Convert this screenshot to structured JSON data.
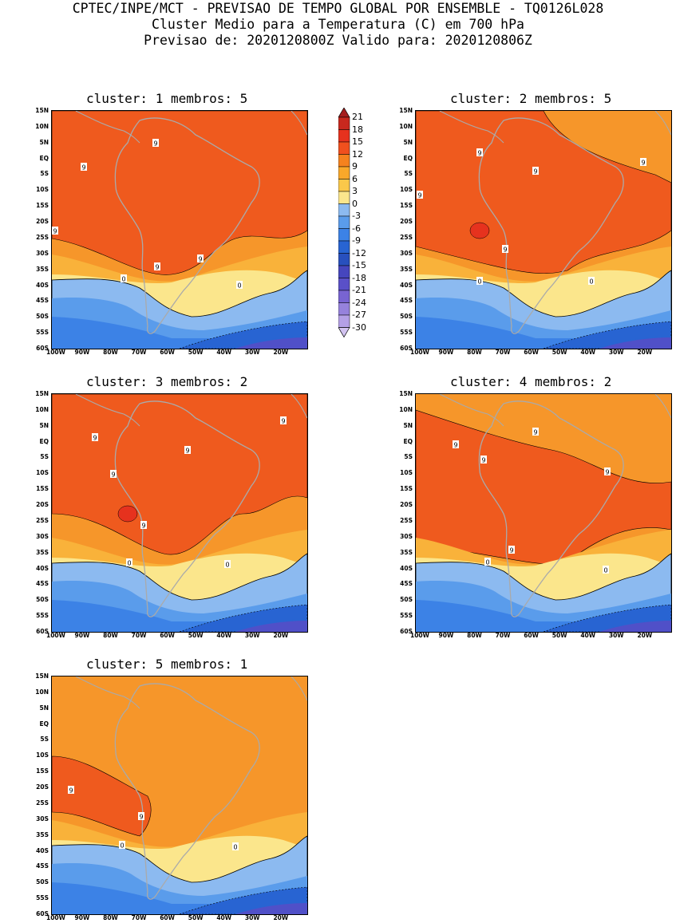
{
  "header": {
    "line1": "CPTEC/INPE/MCT - PREVISAO DE TEMPO GLOBAL POR ENSEMBLE - TQ0126L028",
    "line2": "Cluster Medio para a Temperatura (C) em 700 hPa",
    "line3": "Previsao de: 2020120800Z   Valido para: 2020120806Z"
  },
  "axes": {
    "lat_labels": [
      "15N",
      "10N",
      "5N",
      "EQ",
      "5S",
      "10S",
      "15S",
      "20S",
      "25S",
      "30S",
      "35S",
      "40S",
      "45S",
      "50S",
      "55S",
      "60S"
    ],
    "lon_labels": [
      "100W",
      "90W",
      "80W",
      "70W",
      "60W",
      "50W",
      "40W",
      "30W",
      "20W"
    ]
  },
  "panels": [
    {
      "title": "cluster: 1   membros: 5"
    },
    {
      "title": "cluster: 2   membros: 5"
    },
    {
      "title": "cluster: 3   membros: 2"
    },
    {
      "title": "cluster: 4   membros: 2"
    },
    {
      "title": "cluster: 5   membros: 1"
    }
  ],
  "contour_labels": {
    "nine": "9",
    "zero": "0"
  },
  "colorbar": {
    "labels": [
      "21",
      "18",
      "15",
      "12",
      "9",
      "6",
      "3",
      "0",
      "-3",
      "-6",
      "-9",
      "-12",
      "-15",
      "-18",
      "-21",
      "-24",
      "-27",
      "-30"
    ],
    "colors": [
      "#a51e1e",
      "#c8281e",
      "#e6321e",
      "#f0501e",
      "#f5821e",
      "#f9a82a",
      "#fac84a",
      "#fbe68c",
      "#8cbaf0",
      "#5a9ceb",
      "#3c82e6",
      "#2864d2",
      "#2850be",
      "#4646be",
      "#5a50c8",
      "#7864d2",
      "#9682dc",
      "#b4a0e6",
      "#d2c3f0"
    ]
  },
  "legend_fills": {
    "warm_deep": "#ef5a1e",
    "warm": "#f6962a",
    "orange_light": "#f9b23a",
    "yellow": "#fbe68c",
    "blue_light": "#8cbaf0",
    "blue": "#5a9ceb",
    "blue_mid": "#3c82e6",
    "blue_deep": "#2864d2",
    "purple": "#5050c8",
    "red_core": "#e6321e",
    "land": "#aaaaaa"
  }
}
